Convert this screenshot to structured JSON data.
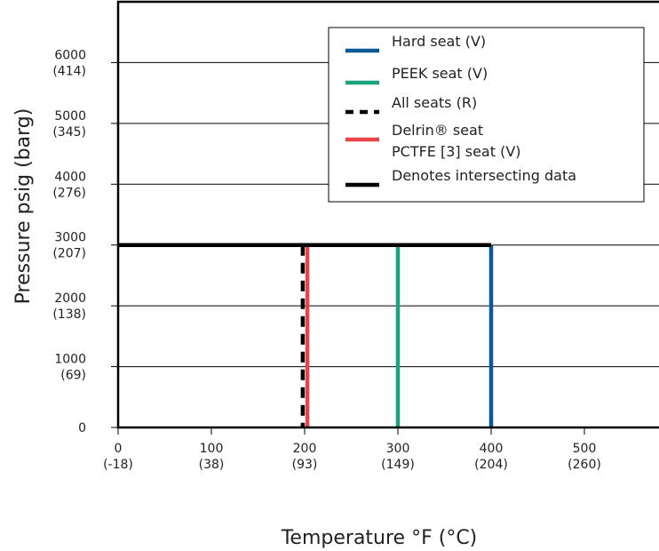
{
  "chart_data": {
    "type": "line",
    "title": "",
    "xlabel": "Temperature °F (°C)",
    "ylabel": "Pressure psig (barg)",
    "xlim": [
      0,
      580
    ],
    "ylim": [
      0,
      7000
    ],
    "x_ticks": [
      {
        "value": 0,
        "label": "0",
        "sublabel": "(-18)"
      },
      {
        "value": 100,
        "label": "100",
        "sublabel": "(38)"
      },
      {
        "value": 200,
        "label": "200",
        "sublabel": "(93)"
      },
      {
        "value": 300,
        "label": "300",
        "sublabel": "(149)"
      },
      {
        "value": 400,
        "label": "400",
        "sublabel": "(204)"
      },
      {
        "value": 500,
        "label": "500",
        "sublabel": "(260)"
      }
    ],
    "y_ticks": [
      {
        "value": 0,
        "label": "0",
        "sublabel": ""
      },
      {
        "value": 1000,
        "label": "1000",
        "sublabel": "(69)"
      },
      {
        "value": 2000,
        "label": "2000",
        "sublabel": "(138)"
      },
      {
        "value": 3000,
        "label": "3000",
        "sublabel": "(207)"
      },
      {
        "value": 4000,
        "label": "4000",
        "sublabel": "(276)"
      },
      {
        "value": 5000,
        "label": "5000",
        "sublabel": "(345)"
      },
      {
        "value": 6000,
        "label": "6000",
        "sublabel": "(414)"
      }
    ],
    "grid": "horizontal",
    "legend_position": "top-right",
    "series": [
      {
        "name": "Hard seat (V)",
        "color": "#0a5a96",
        "dash": "solid",
        "x": [
          0,
          400,
          400
        ],
        "y": [
          3000,
          3000,
          0
        ]
      },
      {
        "name": "PEEK seat (V)",
        "color": "#1aa37e",
        "dash": "solid",
        "x": [
          0,
          300,
          300
        ],
        "y": [
          3000,
          3000,
          0
        ]
      },
      {
        "name": "All seats (R)",
        "color": "#000000",
        "dash": "dashed",
        "x": [
          0,
          198,
          198
        ],
        "y": [
          3000,
          3000,
          0
        ]
      },
      {
        "name": "Delrin® seat",
        "name_line2": "PCTFE [3] seat (V)",
        "color": "#e8444a",
        "dash": "solid",
        "x": [
          0,
          203,
          203
        ],
        "y": [
          3000,
          3000,
          0
        ]
      },
      {
        "name": "Denotes intersecting data",
        "color": "#000000",
        "dash": "solid",
        "x": [
          0,
          400
        ],
        "y": [
          3000,
          3000
        ]
      }
    ]
  }
}
